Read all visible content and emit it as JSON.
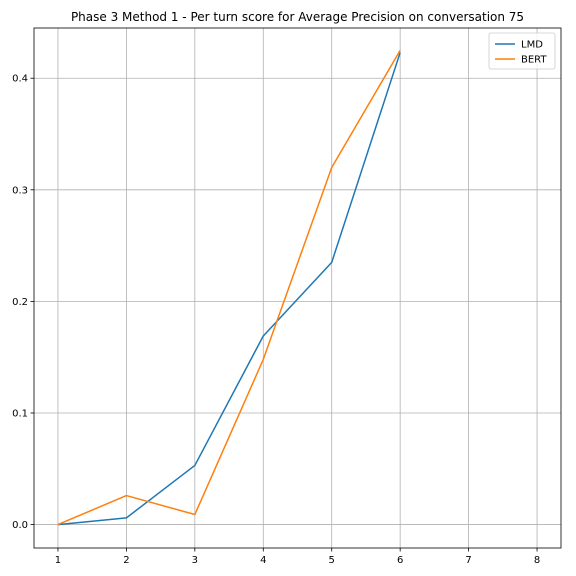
{
  "chart_data": {
    "type": "line",
    "title": "Phase 3 Method 1 - Per turn score for Average Precision on conversation 75",
    "xlabel": "",
    "ylabel": "",
    "xlim": [
      0.65,
      8.35
    ],
    "ylim": [
      -0.021,
      0.445
    ],
    "xticks": [
      1,
      2,
      3,
      4,
      5,
      6,
      7,
      8
    ],
    "yticks": [
      0.0,
      0.1,
      0.2,
      0.3,
      0.4
    ],
    "ytick_labels": [
      "0.0",
      "0.1",
      "0.2",
      "0.3",
      "0.4"
    ],
    "grid": true,
    "legend_position": "top-right",
    "x": [
      1,
      2,
      3,
      4,
      5,
      6
    ],
    "series": [
      {
        "name": "LMD",
        "color": "#1f77b4",
        "values": [
          0.0,
          0.006,
          0.053,
          0.169,
          0.235,
          0.423
        ]
      },
      {
        "name": "BERT",
        "color": "#ff7f0e",
        "values": [
          0.0,
          0.026,
          0.009,
          0.148,
          0.32,
          0.425
        ]
      }
    ]
  }
}
